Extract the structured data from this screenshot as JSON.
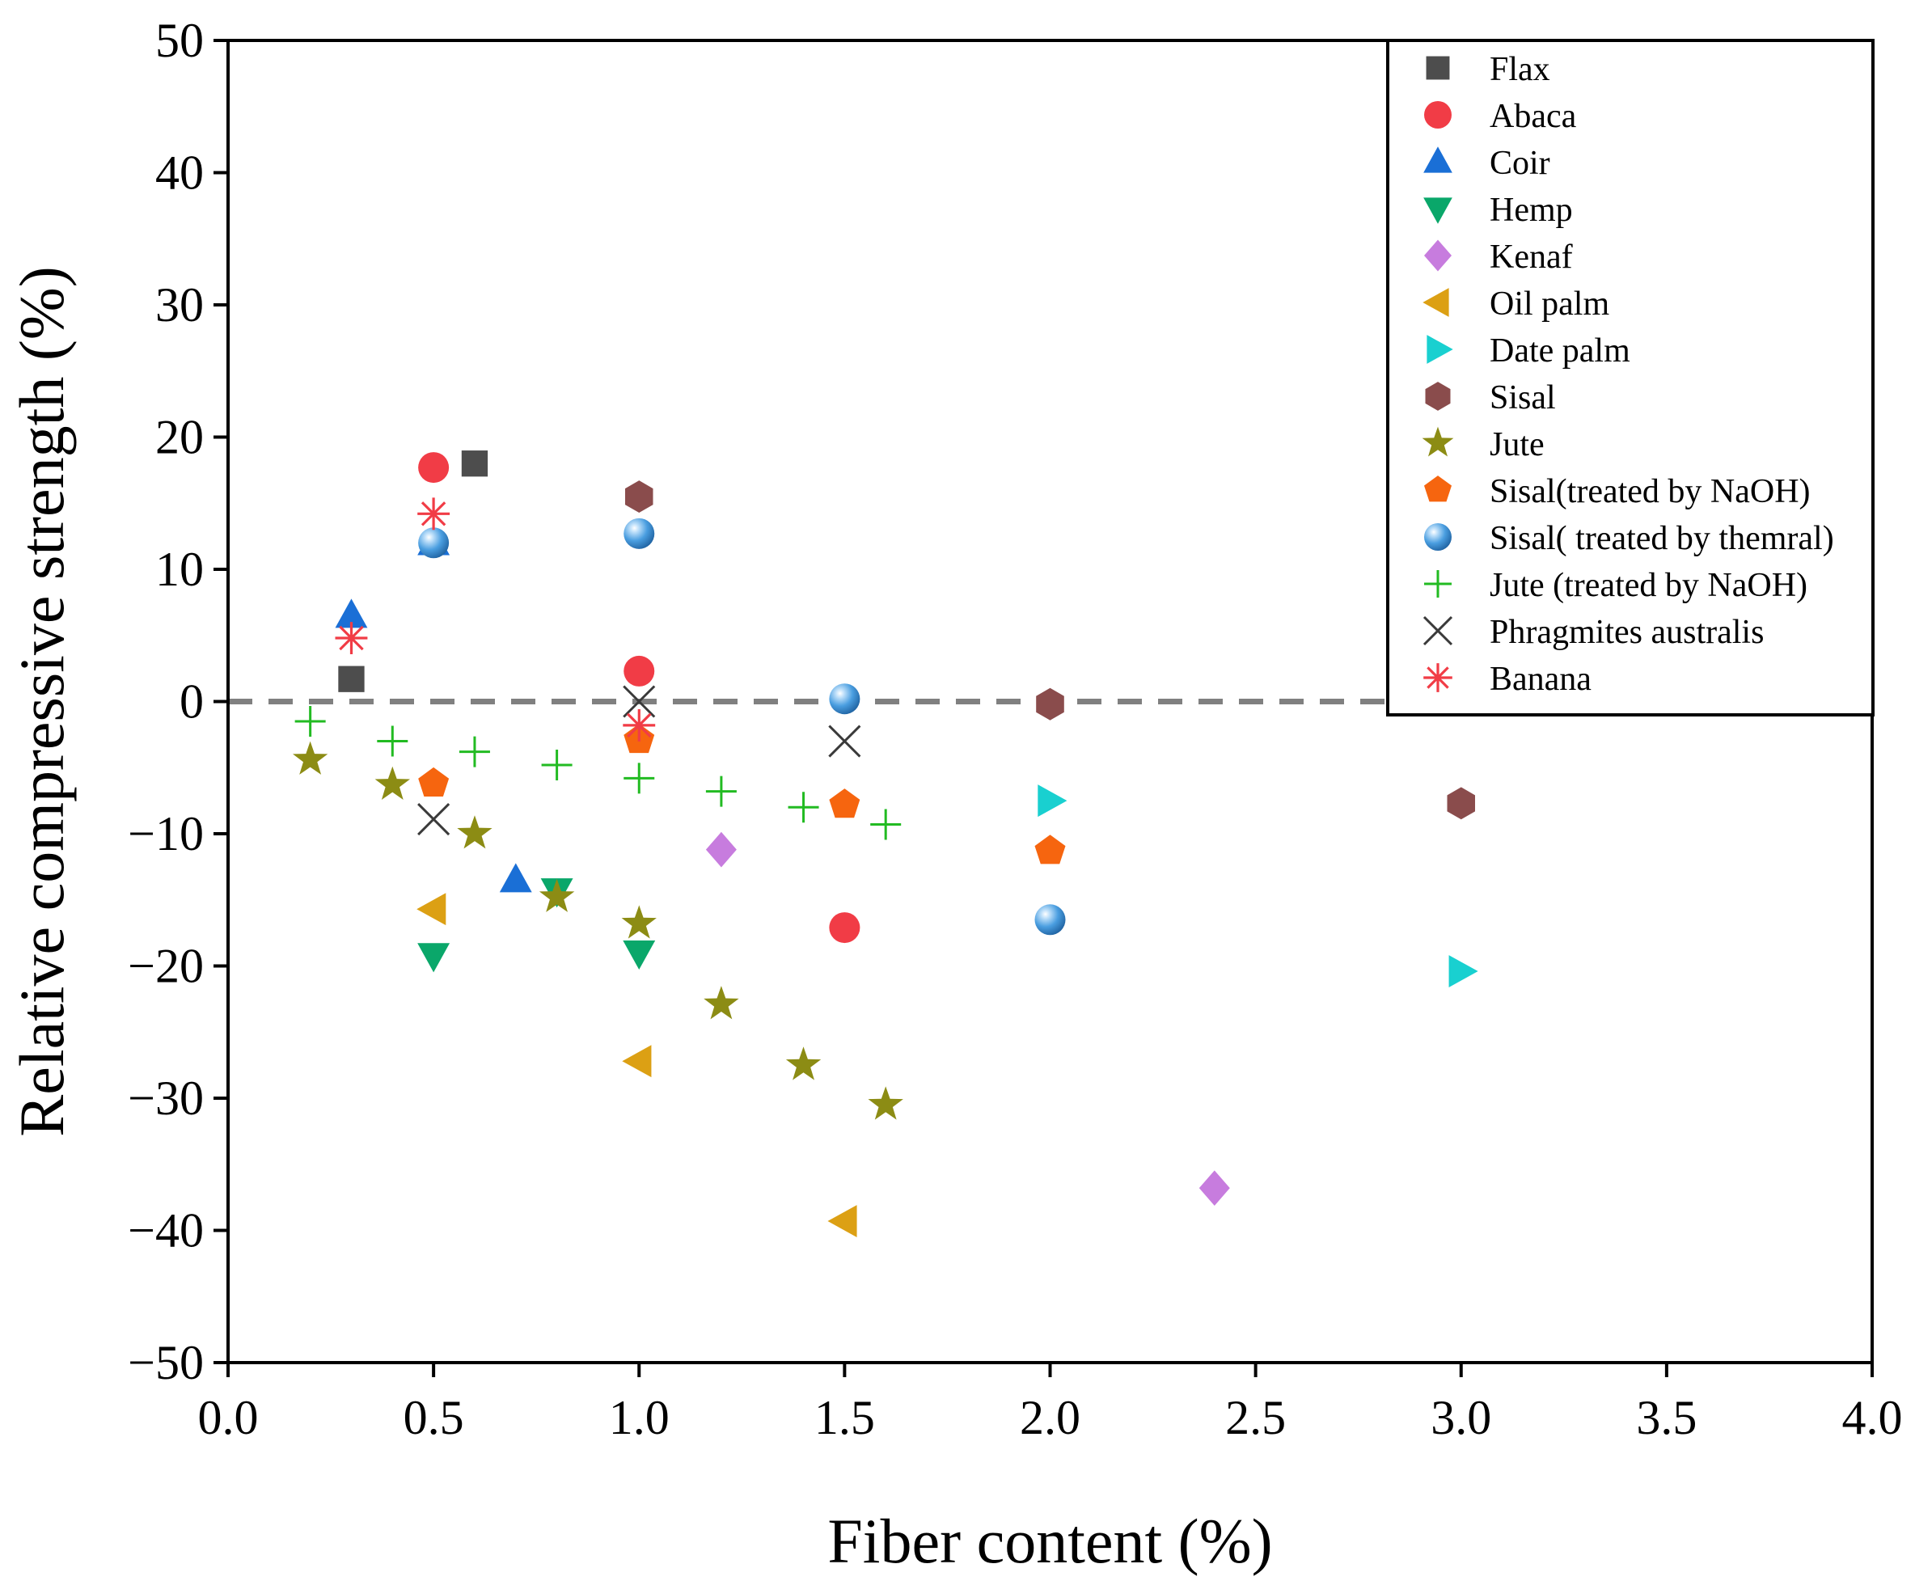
{
  "chart_data": {
    "type": "scatter",
    "xlabel": "Fiber content (%)",
    "ylabel": "Relative compressive strength (%)",
    "xlim": [
      0.0,
      4.0
    ],
    "ylim": [
      -50,
      50
    ],
    "x_ticks": [
      0.0,
      0.5,
      1.0,
      1.5,
      2.0,
      2.5,
      3.0,
      3.5,
      4.0
    ],
    "x_tick_labels": [
      "0.0",
      "0.5",
      "1.0",
      "1.5",
      "2.0",
      "2.5",
      "3.0",
      "3.5",
      "4.0"
    ],
    "y_ticks": [
      50,
      40,
      30,
      20,
      10,
      0,
      -10,
      -20,
      -30,
      -40,
      -50
    ],
    "y_tick_labels": [
      "50",
      "40",
      "30",
      "20",
      "10",
      "0",
      "−10",
      "−20",
      "−30",
      "−40",
      "−50"
    ],
    "reference_line": {
      "y": 0,
      "style": "dashed",
      "color": "#808080"
    },
    "grid": false,
    "legend_position": "top-right",
    "series": [
      {
        "name": "Flax",
        "marker": "square",
        "color": "#4d4d4d",
        "points": [
          [
            0.3,
            1.7
          ],
          [
            0.6,
            18.0
          ]
        ]
      },
      {
        "name": "Abaca",
        "marker": "circle",
        "color": "#f13c46",
        "points": [
          [
            0.5,
            17.7
          ],
          [
            1.0,
            2.3
          ],
          [
            1.5,
            -17.1
          ]
        ]
      },
      {
        "name": "Coir",
        "marker": "triangle-up",
        "color": "#1a6fd6",
        "points": [
          [
            0.3,
            6.5
          ],
          [
            0.5,
            12.0
          ],
          [
            0.7,
            -13.5
          ]
        ]
      },
      {
        "name": "Hemp",
        "marker": "triangle-down",
        "color": "#0aa76a",
        "points": [
          [
            0.5,
            -19.2
          ],
          [
            0.8,
            -14.3
          ],
          [
            1.0,
            -19.0
          ]
        ]
      },
      {
        "name": "Kenaf",
        "marker": "diamond",
        "color": "#c77cde",
        "points": [
          [
            1.2,
            -11.2
          ],
          [
            2.4,
            -36.8
          ]
        ]
      },
      {
        "name": "Oil palm",
        "marker": "triangle-left",
        "color": "#dca014",
        "points": [
          [
            0.5,
            -15.7
          ],
          [
            1.0,
            -27.2
          ],
          [
            1.5,
            -39.3
          ]
        ]
      },
      {
        "name": "Date palm",
        "marker": "triangle-right",
        "color": "#19d0d0",
        "points": [
          [
            2.0,
            -7.5
          ],
          [
            3.0,
            -20.4
          ]
        ]
      },
      {
        "name": "Sisal",
        "marker": "hexagon",
        "color": "#8a4c4c",
        "points": [
          [
            1.0,
            15.5
          ],
          [
            2.0,
            -0.2
          ],
          [
            3.0,
            -7.7
          ]
        ]
      },
      {
        "name": "Jute",
        "marker": "star",
        "color": "#8c8c14",
        "points": [
          [
            0.2,
            -4.4
          ],
          [
            0.4,
            -6.3
          ],
          [
            0.6,
            -10.0
          ],
          [
            0.8,
            -14.8
          ],
          [
            1.0,
            -16.8
          ],
          [
            1.2,
            -22.9
          ],
          [
            1.4,
            -27.5
          ],
          [
            1.6,
            -30.5
          ]
        ]
      },
      {
        "name": "Sisal(treated by NaOH)",
        "marker": "pentagon",
        "color": "#f6650f",
        "points": [
          [
            0.5,
            -6.2
          ],
          [
            1.0,
            -2.9
          ],
          [
            1.5,
            -7.8
          ],
          [
            2.0,
            -11.3
          ]
        ]
      },
      {
        "name": "Sisal( treated by themral)",
        "marker": "sphere",
        "color": "#3b8fd4",
        "points": [
          [
            0.5,
            12.0
          ],
          [
            1.0,
            12.7
          ],
          [
            1.5,
            0.2
          ],
          [
            2.0,
            -16.5
          ]
        ]
      },
      {
        "name": "Jute (treated by NaOH)",
        "marker": "plus",
        "color": "#22bb22",
        "points": [
          [
            0.2,
            -1.5
          ],
          [
            0.4,
            -3.0
          ],
          [
            0.6,
            -3.8
          ],
          [
            0.8,
            -4.8
          ],
          [
            1.0,
            -5.8
          ],
          [
            1.2,
            -6.8
          ],
          [
            1.4,
            -8.0
          ],
          [
            1.6,
            -9.3
          ]
        ]
      },
      {
        "name": "Phragmites australis",
        "marker": "cross",
        "color": "#3a3a3a",
        "points": [
          [
            0.5,
            -8.9
          ],
          [
            1.0,
            0.0
          ],
          [
            1.5,
            -3.0
          ]
        ]
      },
      {
        "name": "Banana",
        "marker": "asterisk",
        "color": "#f13c46",
        "points": [
          [
            0.3,
            4.8
          ],
          [
            0.5,
            14.2
          ],
          [
            1.0,
            -1.8
          ]
        ]
      }
    ]
  }
}
